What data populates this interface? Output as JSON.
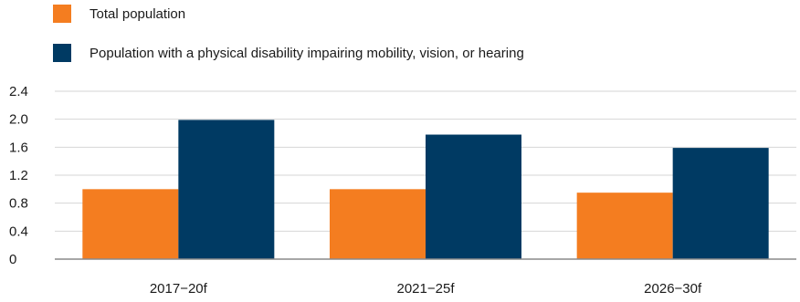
{
  "chart_data": {
    "type": "bar",
    "title": "",
    "xlabel": "",
    "ylabel": "",
    "categories": [
      "2017−20f",
      "2021−25f",
      "2026−30f"
    ],
    "series": [
      {
        "name": "Total population",
        "color": "#f47d20",
        "values": [
          1.0,
          1.0,
          0.95
        ]
      },
      {
        "name": "Population with a physical disability impairing mobility, vision, or hearing",
        "color": "#003a63",
        "values": [
          1.99,
          1.78,
          1.59
        ]
      }
    ],
    "ylim": [
      0,
      2.4
    ],
    "yticks": [
      "0",
      "0.4",
      "0.8",
      "1.2",
      "1.6",
      "2.0",
      "2.4"
    ],
    "grid": true,
    "legend_position": "top-left"
  }
}
